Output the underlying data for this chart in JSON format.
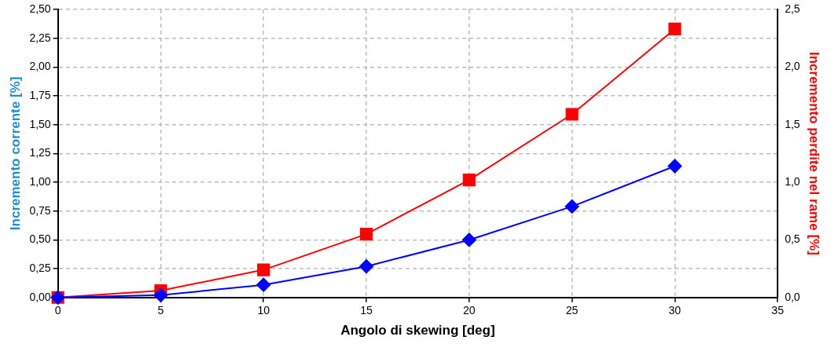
{
  "chart_data": {
    "type": "line",
    "xlabel": "Angolo di skewing [deg]",
    "ylabel": "Incremento corrente [%]",
    "y2label": "Incremento perdite nel rame [%]",
    "x": [
      0,
      5,
      10,
      15,
      20,
      25,
      30
    ],
    "series": [
      {
        "color": "#0000ff",
        "marker": "diamond",
        "values": [
          0,
          0.02,
          0.11,
          0.27,
          0.5,
          0.79,
          1.14
        ]
      },
      {
        "color": "#ff0000",
        "marker": "square",
        "axis": "y2",
        "values": [
          0,
          0.06,
          0.24,
          0.55,
          1.02,
          1.59,
          2.33
        ]
      }
    ],
    "xlim": [
      0,
      35
    ],
    "xticks": [
      0,
      5,
      10,
      15,
      20,
      25,
      30,
      35
    ],
    "ylim": [
      0,
      2.5
    ],
    "yticks": [
      {
        "value": 0,
        "label": "0,00"
      },
      {
        "value": 0.25,
        "label": "0,25"
      },
      {
        "value": 0.5,
        "label": "0,50"
      },
      {
        "value": 0.75,
        "label": "0,75"
      },
      {
        "value": 1,
        "label": "1,00"
      },
      {
        "value": 1.25,
        "label": "1,25"
      },
      {
        "value": 1.5,
        "label": "1,50"
      },
      {
        "value": 1.75,
        "label": "1,75"
      },
      {
        "value": 2,
        "label": "2,00"
      },
      {
        "value": 2.25,
        "label": "2,25"
      },
      {
        "value": 2.5,
        "label": "2,50"
      }
    ],
    "y2lim": [
      0,
      2.5
    ],
    "y2ticks": [
      {
        "value": 0,
        "label": "0,0"
      },
      {
        "value": 0.5,
        "label": "0,5"
      },
      {
        "value": 1,
        "label": "1,0"
      },
      {
        "value": 1.5,
        "label": "1,5"
      },
      {
        "value": 2,
        "label": "2,0"
      },
      {
        "value": 2.5,
        "label": "2,5"
      }
    ],
    "grid": true,
    "legend": false
  }
}
